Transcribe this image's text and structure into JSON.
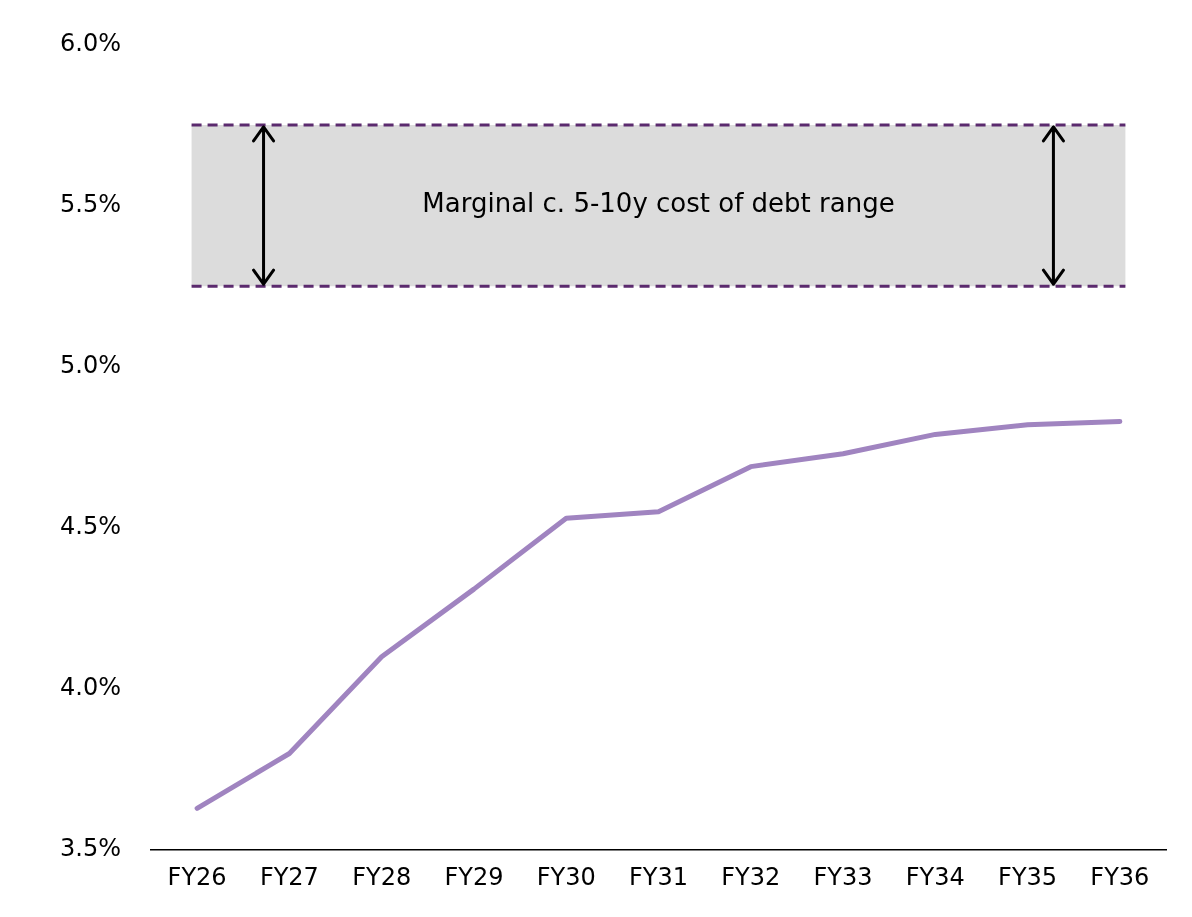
{
  "chart_data": {
    "type": "line",
    "categories": [
      "FY26",
      "FY27",
      "FY28",
      "FY29",
      "FY30",
      "FY31",
      "FY32",
      "FY33",
      "FY34",
      "FY35",
      "FY36"
    ],
    "series": [
      {
        "color": "#a084c0",
        "values": [
          3.63,
          3.8,
          4.1,
          4.31,
          4.53,
          4.55,
          4.69,
          4.73,
          4.79,
          4.82,
          4.83
        ]
      }
    ],
    "ylim": [
      3.5,
      6.0
    ],
    "yticks": [
      {
        "value": 3.5,
        "label": "3.5%"
      },
      {
        "value": 4.0,
        "label": "4.0%"
      },
      {
        "value": 4.5,
        "label": "4.5%"
      },
      {
        "value": 5.0,
        "label": "5.0%"
      },
      {
        "value": 5.5,
        "label": "5.5%"
      },
      {
        "value": 6.0,
        "label": "6.0%"
      }
    ],
    "bands": [
      {
        "axis": "y",
        "from": 5.25,
        "to": 5.75,
        "label": "Marginal c. 5-10y cost of debt range",
        "color": "#dcdcdc"
      }
    ],
    "ref_lines": [
      {
        "axis": "y",
        "value": 5.75,
        "color": "#5b2a6e",
        "line_style": "dashed"
      },
      {
        "axis": "y",
        "value": 5.25,
        "color": "#5b2a6e",
        "line_style": "dashed"
      }
    ],
    "grid": false,
    "legend": false,
    "marker": "none",
    "line_style": "solid"
  }
}
